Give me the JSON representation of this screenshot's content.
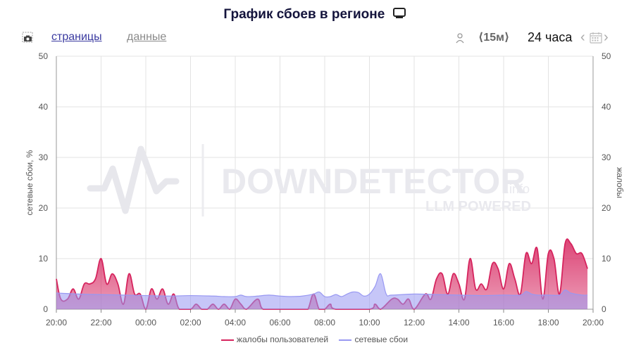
{
  "header": {
    "title": "График сбоев в регионе",
    "tabs": [
      {
        "label": "страницы",
        "active": true
      },
      {
        "label": "данные",
        "active": false
      }
    ],
    "interval_label": "⟨15м⟩",
    "range_label": "24 часа",
    "prev_glyph": "‹",
    "next_glyph": "›",
    "icons": [
      "camera-icon",
      "tv-icon",
      "person-icon",
      "calendar-icon",
      "chevron-left-icon",
      "chevron-right-icon"
    ]
  },
  "watermark": {
    "brand": "DOWNDETECTOR",
    "suffix": ".info",
    "tagline": "LLM POWERED"
  },
  "chart_data": {
    "type": "area",
    "ylim": [
      0,
      50
    ],
    "y2lim": [
      0,
      50
    ],
    "yticks": [
      0,
      10,
      20,
      30,
      40,
      50
    ],
    "ylabel": "сетевые сбои, %",
    "y2label": "жалобы",
    "grid": true,
    "legend_position": "bottom",
    "x_tick_labels": [
      "20:00",
      "22:00",
      "00:00",
      "02:00",
      "04:00",
      "06:00",
      "08:00",
      "10:00",
      "12:00",
      "14:00",
      "16:00",
      "18:00",
      "20:00"
    ],
    "series": [
      {
        "name": "жалобы пользователей",
        "axis": "right",
        "color": "#d6245e",
        "points": [
          [
            0,
            6
          ],
          [
            0.2,
            2
          ],
          [
            0.5,
            2
          ],
          [
            0.75,
            4
          ],
          [
            1,
            2
          ],
          [
            1.25,
            5
          ],
          [
            1.5,
            5
          ],
          [
            1.75,
            6
          ],
          [
            2,
            10
          ],
          [
            2.25,
            5
          ],
          [
            2.5,
            7
          ],
          [
            2.75,
            5
          ],
          [
            3,
            1
          ],
          [
            3.25,
            7
          ],
          [
            3.5,
            3
          ],
          [
            3.75,
            3
          ],
          [
            4,
            0
          ],
          [
            4.25,
            4
          ],
          [
            4.5,
            2
          ],
          [
            4.75,
            4
          ],
          [
            5,
            1
          ],
          [
            5.25,
            3
          ],
          [
            5.5,
            0
          ],
          [
            6,
            0
          ],
          [
            6.25,
            1
          ],
          [
            6.5,
            0
          ],
          [
            6.75,
            0
          ],
          [
            7,
            1
          ],
          [
            7.25,
            0
          ],
          [
            7.5,
            1
          ],
          [
            7.75,
            0
          ],
          [
            8,
            2
          ],
          [
            8.25,
            1
          ],
          [
            8.5,
            0
          ],
          [
            9,
            2
          ],
          [
            9.25,
            0
          ],
          [
            10,
            0
          ],
          [
            11,
            0
          ],
          [
            11.25,
            0
          ],
          [
            11.5,
            3
          ],
          [
            11.75,
            0
          ],
          [
            12,
            0
          ],
          [
            12.25,
            1
          ],
          [
            12.5,
            0
          ],
          [
            14,
            0
          ],
          [
            14.25,
            1
          ],
          [
            14.5,
            0
          ],
          [
            15,
            2
          ],
          [
            15.25,
            2
          ],
          [
            15.5,
            1
          ],
          [
            15.75,
            2
          ],
          [
            16,
            0
          ],
          [
            16.5,
            3
          ],
          [
            16.75,
            2
          ],
          [
            17,
            6
          ],
          [
            17.25,
            7
          ],
          [
            17.5,
            3
          ],
          [
            17.75,
            7
          ],
          [
            18,
            5
          ],
          [
            18.25,
            2
          ],
          [
            18.5,
            10
          ],
          [
            18.75,
            4
          ],
          [
            19,
            5
          ],
          [
            19.25,
            4
          ],
          [
            19.5,
            9
          ],
          [
            19.75,
            8
          ],
          [
            20,
            4
          ],
          [
            20.25,
            9
          ],
          [
            20.5,
            6
          ],
          [
            20.75,
            3
          ],
          [
            21,
            11
          ],
          [
            21.25,
            9
          ],
          [
            21.5,
            12
          ],
          [
            21.75,
            2
          ],
          [
            22,
            11
          ],
          [
            22.25,
            10
          ],
          [
            22.5,
            3
          ],
          [
            22.75,
            13
          ],
          [
            23,
            13
          ],
          [
            23.25,
            11
          ],
          [
            23.5,
            11
          ],
          [
            23.75,
            8
          ]
        ]
      },
      {
        "name": "сетевые сбои",
        "axis": "left",
        "color": "#9898f2",
        "points": [
          [
            0,
            3.2
          ],
          [
            1,
            3
          ],
          [
            2,
            2.9
          ],
          [
            3,
            2.8
          ],
          [
            4,
            2.7
          ],
          [
            5,
            2.6
          ],
          [
            6,
            2.7
          ],
          [
            7,
            2.6
          ],
          [
            7.5,
            2.5
          ],
          [
            8,
            2.5
          ],
          [
            8.25,
            2.8
          ],
          [
            8.5,
            2.5
          ],
          [
            9,
            2.6
          ],
          [
            9.5,
            2.8
          ],
          [
            10,
            2.6
          ],
          [
            10.5,
            2.5
          ],
          [
            11,
            2.6
          ],
          [
            11.5,
            3
          ],
          [
            11.75,
            3.4
          ],
          [
            12,
            2.5
          ],
          [
            12.25,
            2.5
          ],
          [
            12.5,
            2.9
          ],
          [
            12.75,
            2.5
          ],
          [
            13,
            3
          ],
          [
            13.25,
            3.4
          ],
          [
            13.5,
            3.3
          ],
          [
            13.75,
            2.6
          ],
          [
            14,
            3
          ],
          [
            14.25,
            4.5
          ],
          [
            14.5,
            7
          ],
          [
            14.75,
            3
          ],
          [
            15,
            2.8
          ],
          [
            16,
            3
          ],
          [
            17,
            2.9
          ],
          [
            18,
            2.8
          ],
          [
            19,
            2.7
          ],
          [
            20,
            2.8
          ],
          [
            20.75,
            2.8
          ],
          [
            21,
            3.5
          ],
          [
            21.25,
            3
          ],
          [
            21.5,
            2.8
          ],
          [
            22,
            2.8
          ],
          [
            22.5,
            2.8
          ],
          [
            22.75,
            3.8
          ],
          [
            23,
            3.2
          ],
          [
            23.5,
            2.8
          ],
          [
            23.75,
            2.8
          ]
        ]
      }
    ]
  }
}
